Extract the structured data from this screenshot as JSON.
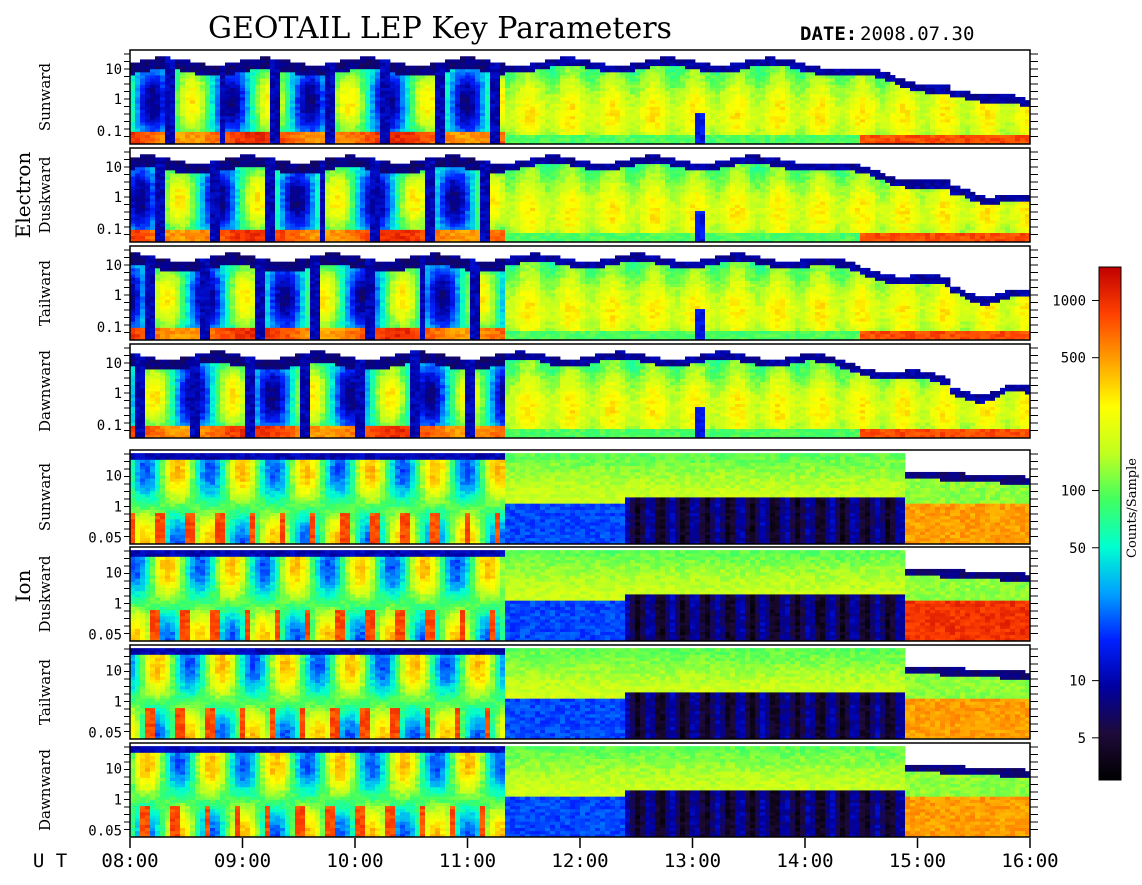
{
  "chart_data": {
    "type": "heatmap",
    "title": "GEOTAIL LEP Key Parameters",
    "date_label": "DATE:",
    "date_value": "2008.07.30",
    "time_axis": {
      "label": "U T",
      "start_hour": 8,
      "end_hour": 16,
      "ticks": [
        "08:00",
        "09:00",
        "10:00",
        "11:00",
        "12:00",
        "13:00",
        "14:00",
        "15:00",
        "16:00"
      ]
    },
    "groups": [
      {
        "name": "Electron",
        "panels": [
          "Sunward",
          "Duskward",
          "Tailward",
          "Dawnward"
        ]
      },
      {
        "name": "Ion",
        "panels": [
          "Sunward",
          "Duskward",
          "Tailward",
          "Dawnward"
        ]
      }
    ],
    "electron_y_axis": {
      "scale": "log",
      "range": [
        0.05,
        30
      ],
      "tick_labels": [
        "10",
        "1",
        "0.1"
      ]
    },
    "ion_y_axis": {
      "scale": "log",
      "range": [
        0.04,
        30
      ],
      "tick_labels": [
        "10",
        "1",
        "0.05"
      ]
    },
    "colorbar": {
      "label": "Counts/Sample",
      "scale": "log",
      "range": [
        3,
        1500
      ],
      "tick_labels": [
        "1000",
        "500",
        "100",
        "50",
        "10",
        "5"
      ],
      "colormap": [
        "#000000",
        "#1e0a3a",
        "#0000a0",
        "#0020ff",
        "#00a0ff",
        "#00ffd0",
        "#40ff60",
        "#c0ff20",
        "#ffff00",
        "#ffa000",
        "#ff4000",
        "#c00000"
      ]
    },
    "features": {
      "regime_boundary_hour": 11.35,
      "electron_low_energy_spike_hour": 13.08,
      "ion_dropout_start_hour": 12.4,
      "ion_dropout_end_hour": 14.9
    }
  }
}
